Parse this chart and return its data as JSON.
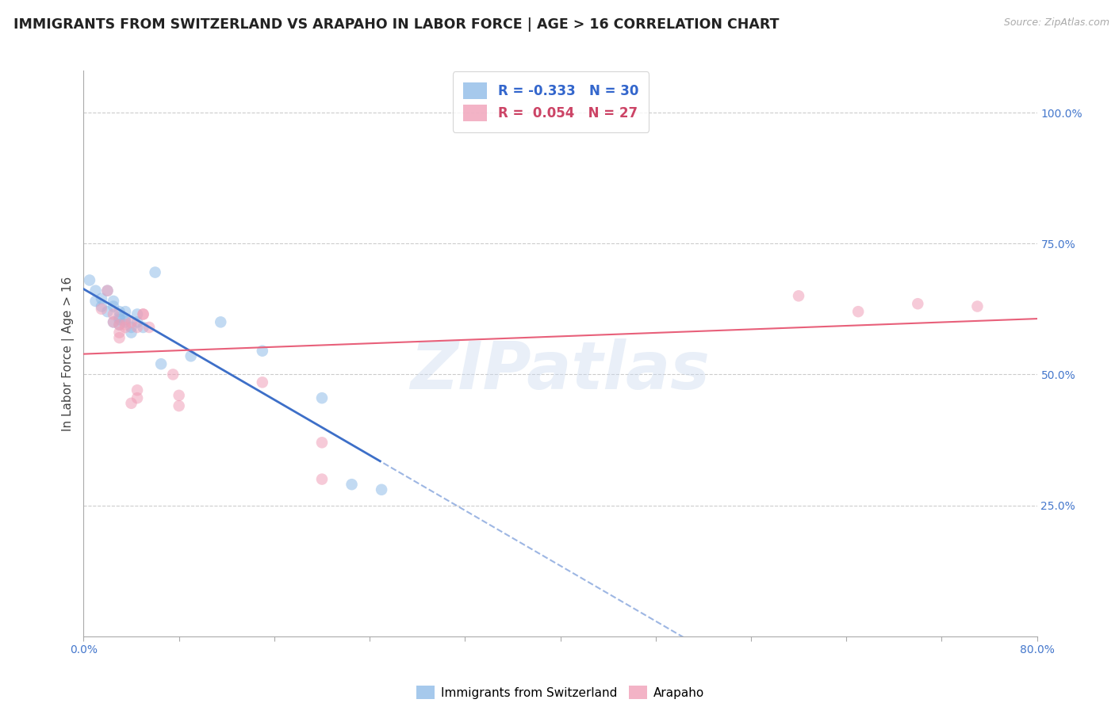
{
  "title": "IMMIGRANTS FROM SWITZERLAND VS ARAPAHO IN LABOR FORCE | AGE > 16 CORRELATION CHART",
  "source": "Source: ZipAtlas.com",
  "ylabel": "In Labor Force | Age > 16",
  "legend_swiss_R": "-0.333",
  "legend_swiss_N": "30",
  "legend_arapaho_R": "0.054",
  "legend_arapaho_N": "27",
  "swiss_fill_color": "#90bce8",
  "arapaho_fill_color": "#f0a0b8",
  "swiss_line_color": "#3d6fc8",
  "arapaho_line_color": "#e8607a",
  "right_ytick_vals": [
    0.25,
    0.5,
    0.75,
    1.0
  ],
  "right_ytick_labels": [
    "25.0%",
    "50.0%",
    "75.0%",
    "100.0%"
  ],
  "xlim": [
    0.0,
    80.0
  ],
  "ylim": [
    0.0,
    1.08
  ],
  "swiss_x": [
    0.5,
    1.0,
    1.0,
    1.5,
    1.5,
    2.0,
    2.0,
    2.5,
    2.5,
    2.5,
    3.0,
    3.0,
    3.0,
    3.0,
    3.5,
    3.5,
    3.5,
    4.0,
    4.0,
    4.5,
    4.5,
    5.0,
    6.0,
    6.5,
    9.0,
    11.5,
    15.0,
    20.0,
    22.5,
    25.0
  ],
  "swiss_y": [
    0.68,
    0.64,
    0.66,
    0.645,
    0.63,
    0.66,
    0.62,
    0.64,
    0.6,
    0.63,
    0.62,
    0.605,
    0.595,
    0.61,
    0.62,
    0.6,
    0.605,
    0.58,
    0.59,
    0.615,
    0.6,
    0.59,
    0.695,
    0.52,
    0.535,
    0.6,
    0.545,
    0.455,
    0.29,
    0.28
  ],
  "arapaho_x": [
    1.5,
    2.0,
    2.5,
    2.5,
    3.0,
    3.0,
    3.0,
    3.5,
    3.5,
    4.0,
    4.0,
    4.5,
    4.5,
    4.5,
    5.0,
    5.0,
    5.5,
    7.5,
    8.0,
    8.0,
    15.0,
    20.0,
    20.0,
    60.0,
    65.0,
    70.0,
    75.0
  ],
  "arapaho_y": [
    0.625,
    0.66,
    0.615,
    0.6,
    0.595,
    0.58,
    0.57,
    0.595,
    0.59,
    0.6,
    0.445,
    0.59,
    0.455,
    0.47,
    0.615,
    0.615,
    0.59,
    0.5,
    0.44,
    0.46,
    0.485,
    0.37,
    0.3,
    0.65,
    0.62,
    0.635,
    0.63
  ],
  "watermark": "ZIPatlas",
  "background_color": "#ffffff",
  "grid_color": "#cccccc",
  "title_fontsize": 12.5,
  "tick_fontsize": 10,
  "ylabel_fontsize": 11,
  "marker_size": 110,
  "marker_alpha": 0.55,
  "n_xticks": 11,
  "xtick_labels_first": "0.0%",
  "xtick_labels_last": "80.0%"
}
